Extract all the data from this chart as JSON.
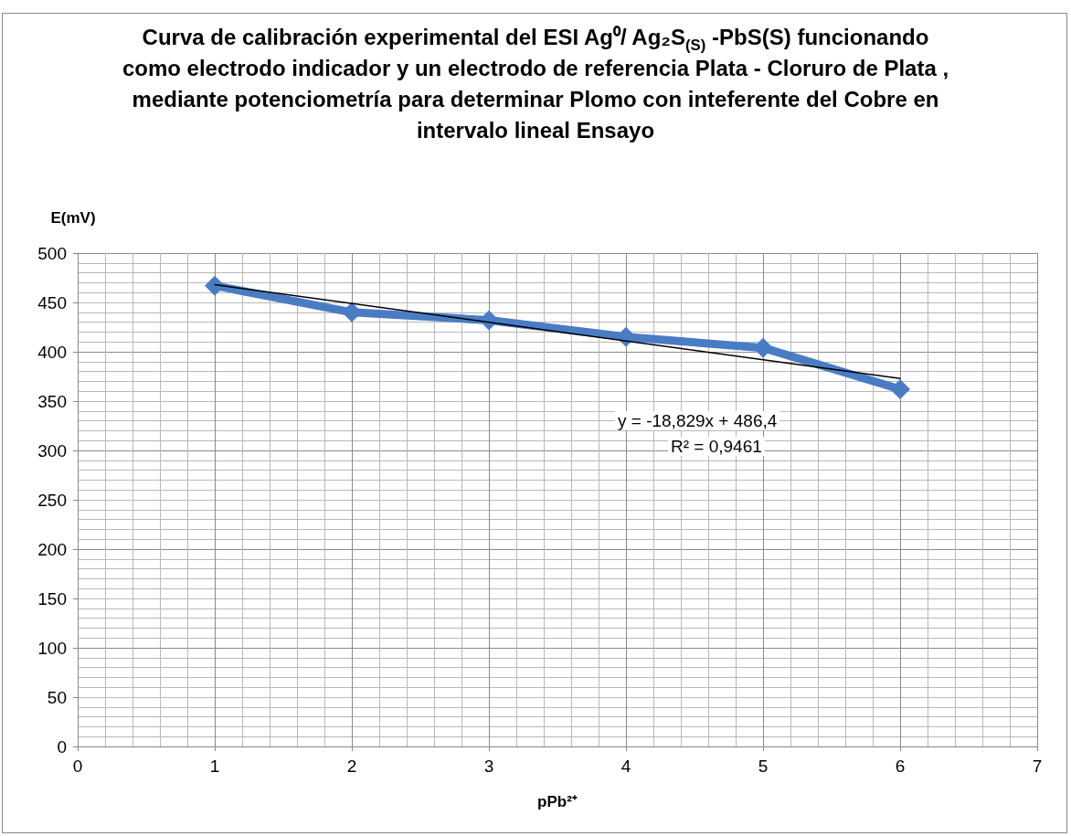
{
  "chart_data": {
    "type": "line",
    "title": "Curva de calibración experimental del ESI Ag⁰/ Ag₂S$_{(S)}$ -PbS(S) funcionando como electrodo indicador y un electrodo de referencia Plata - Cloruro de Plata , mediante potenciometría para determinar  Plomo con inteferente del Cobre en intervalo lineal Ensayo",
    "xlabel": "pPb²⁺",
    "ylabel": "E(mV)",
    "x": [
      1,
      2,
      3,
      4,
      5,
      6
    ],
    "series": [
      {
        "color": "#4a7cc4",
        "values": [
          467,
          440,
          432,
          415,
          404,
          362
        ],
        "marker": "diamond",
        "line_style": "solid"
      },
      {
        "color": "#000000",
        "x": [
          1,
          6
        ],
        "values": [
          468,
          373
        ],
        "marker": "none",
        "line_style": "solid"
      }
    ],
    "annotations": [
      "y = -18,829x + 486,4",
      "R² = 0,9461"
    ],
    "xlim": [
      0,
      7
    ],
    "xticks": [
      0,
      1,
      2,
      3,
      4,
      5,
      6,
      7
    ],
    "ylim": [
      0,
      500
    ],
    "yticks": [
      0,
      50,
      100,
      150,
      200,
      250,
      300,
      350,
      400,
      450,
      500
    ],
    "grid": true
  }
}
